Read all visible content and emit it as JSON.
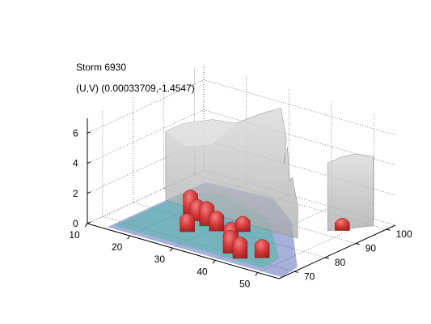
{
  "chart_data": {
    "type": "3d-isosurface",
    "title": "Storm 6930",
    "subtitle": "(U,V) (0.00033709,-1.4547)",
    "xlabel": "",
    "ylabel": "",
    "zlabel": "",
    "x_axis": {
      "ticks": [
        10,
        20,
        30,
        40,
        50
      ],
      "range": [
        10,
        55
      ]
    },
    "y_axis": {
      "ticks": [
        70,
        80,
        90,
        100
      ],
      "range": [
        65,
        103
      ]
    },
    "z_axis": {
      "ticks": [
        0,
        2,
        4,
        6
      ],
      "range": [
        0,
        7
      ]
    },
    "grid": true,
    "surfaces": [
      {
        "name": "",
        "color": "#c8c8c8",
        "opacity": 0.75
      },
      {
        "name": "",
        "color": "#d83a3a",
        "opacity": 0.9
      },
      {
        "name": "",
        "color": "#4fb7a7",
        "opacity": 0.8
      },
      {
        "name": "",
        "color": "#3a4fa8",
        "opacity": 0.8
      }
    ]
  }
}
